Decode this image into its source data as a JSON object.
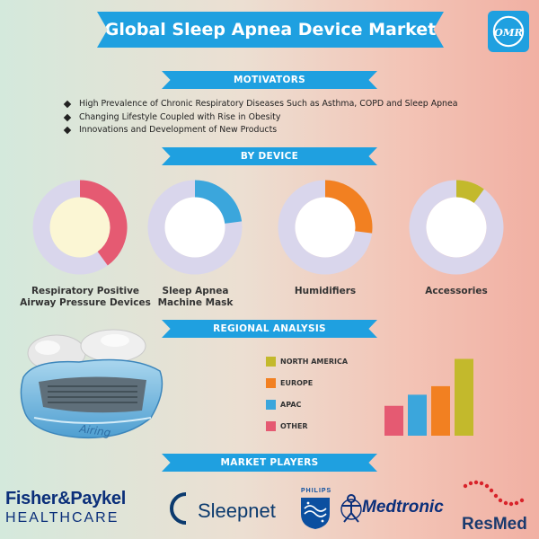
{
  "header": {
    "title": "Global Sleep Apnea Device Market",
    "logo_text": "OMR"
  },
  "sections": {
    "motivators": "MOTIVATORS",
    "by_device": "BY DEVICE",
    "regional": "REGIONAL ANALYSIS",
    "players": "MARKET PLAYERS"
  },
  "motivators": [
    "High Prevalence of Chronic Respiratory Diseases Such as Asthma, COPD and Sleep Apnea",
    "Changing Lifestyle Coupled with Rise in Obesity",
    "Innovations and Development of New Products"
  ],
  "devices": [
    {
      "label_line1": "Respiratory Positive",
      "label_line2": "Airway Pressure Devices",
      "share": 0.4,
      "color": "#e55a72",
      "center": "#fbf6d4"
    },
    {
      "label_line1": "Sleep Apnea",
      "label_line2": "Machine Mask",
      "share": 0.23,
      "color": "#3ba6dc",
      "center": "#ffffff"
    },
    {
      "label_line1": "Humidifiers",
      "label_line2": "",
      "share": 0.27,
      "color": "#f28021",
      "center": "#ffffff"
    },
    {
      "label_line1": "Accessories",
      "label_line2": "",
      "share": 0.1,
      "color": "#c3b92c",
      "center": "#ffffff"
    }
  ],
  "legend": [
    {
      "name": "NORTH AMERICA",
      "color": "#c3b92c"
    },
    {
      "name": "EUROPE",
      "color": "#f28021"
    },
    {
      "name": "APAC",
      "color": "#3ba6dc"
    },
    {
      "name": "OTHER",
      "color": "#e55a72"
    }
  ],
  "chart_data": {
    "type": "bar",
    "categories": [
      "OTHER",
      "APAC",
      "EUROPE",
      "NORTH AMERICA"
    ],
    "values": [
      35,
      48,
      58,
      90
    ],
    "colors": [
      "#e55a72",
      "#3ba6dc",
      "#f28021",
      "#c3b92c"
    ],
    "ylim": [
      0,
      100
    ],
    "grid": false,
    "legend_position": "left"
  },
  "device_image_text": "Airing",
  "players": {
    "fisher_name": "Fisher&Paykel",
    "fisher_sub": "HEALTHCARE",
    "sleepnet": "Sleepnet",
    "philips": "PHILIPS",
    "medtronic": "Medtronic",
    "resmed": "ResMed"
  }
}
